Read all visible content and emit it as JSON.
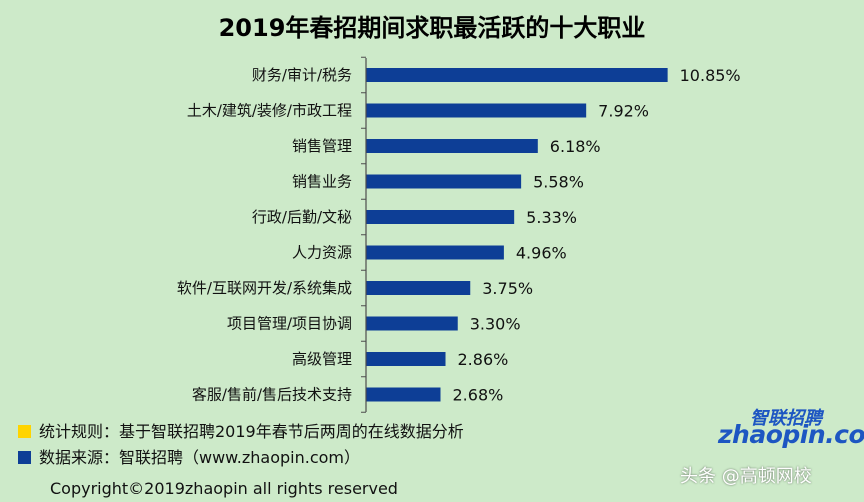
{
  "colors": {
    "background": "#cdeac9",
    "bar": "#0d3e96",
    "axis": "#4d4d4d",
    "legend_rule": "#ffd400",
    "legend_source": "#0d3e96",
    "logo": "#1d56c2",
    "logo_accent": "#e8451e"
  },
  "chart_data": {
    "type": "bar",
    "orientation": "horizontal",
    "title": "2019年春招期间求职最活跃的十大职业",
    "categories": [
      "财务/审计/税务",
      "土木/建筑/装修/市政工程",
      "销售管理",
      "销售业务",
      "行政/后勤/文秘",
      "人力资源",
      "软件/互联网开发/系统集成",
      "项目管理/项目协调",
      "高级管理",
      "客服/售前/售后技术支持"
    ],
    "values": [
      10.85,
      7.92,
      6.18,
      5.58,
      5.33,
      4.96,
      3.75,
      3.3,
      2.86,
      2.68
    ],
    "value_labels": [
      "10.85%",
      "7.92%",
      "6.18%",
      "5.58%",
      "5.33%",
      "4.96%",
      "3.75%",
      "3.30%",
      "2.86%",
      "2.68%"
    ],
    "grid": false
  },
  "legend": {
    "rule": "统计规则：基于智联招聘2019年春节后两周的在线数据分析",
    "source": "数据来源：智联招聘（www.zhaopin.com）"
  },
  "copyright": "Copyright©2019zhaopin all rights reserved",
  "logo": {
    "cn": "智联招聘",
    "en": "zhaopin.com"
  },
  "watermark": "头条 @高顿网校"
}
